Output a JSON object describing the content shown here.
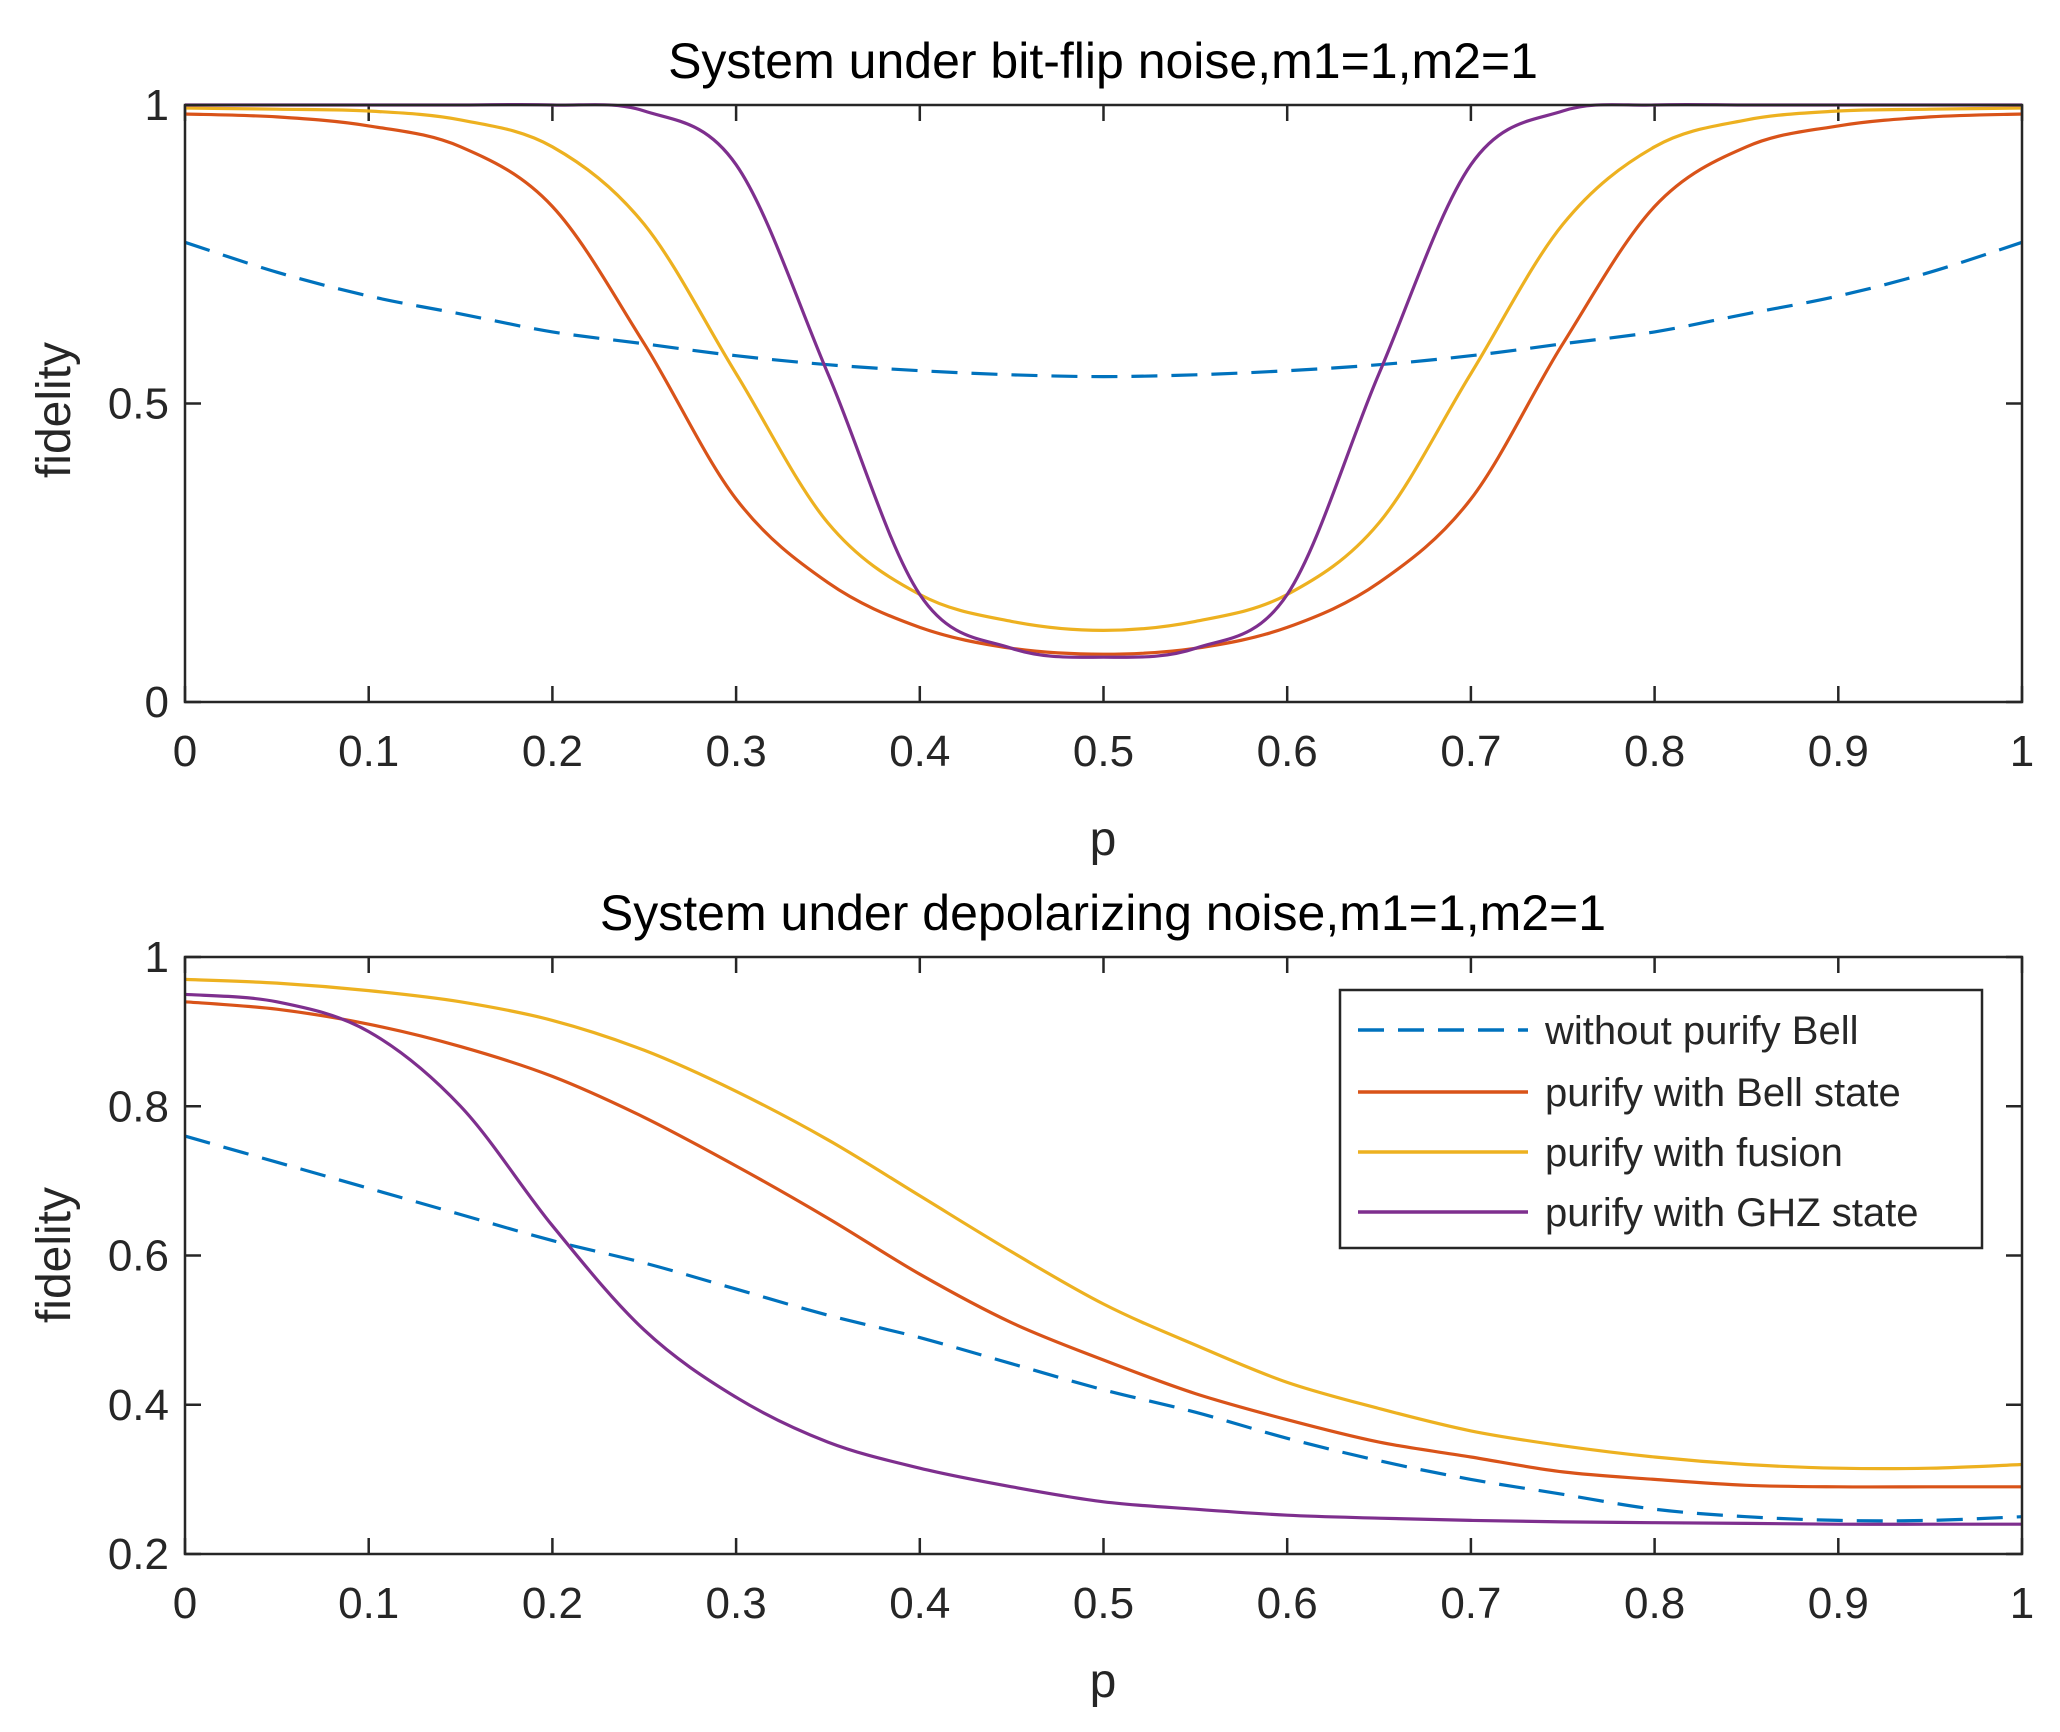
{
  "chart_data": [
    {
      "type": "line",
      "title": "System under bit-flip noise,m1=1,m2=1",
      "xlabel": "p",
      "ylabel": "fidelity",
      "xlim": [
        0,
        1
      ],
      "ylim": [
        0,
        1
      ],
      "xticks": [
        0,
        0.1,
        0.2,
        0.3,
        0.4,
        0.5,
        0.6,
        0.7,
        0.8,
        0.9,
        1
      ],
      "xtick_labels": [
        "0",
        "0.1",
        "0.2",
        "0.3",
        "0.4",
        "0.5",
        "0.6",
        "0.7",
        "0.8",
        "0.9",
        "1"
      ],
      "yticks": [
        0,
        0.5,
        1
      ],
      "ytick_labels": [
        "0",
        "0.5",
        "1"
      ],
      "grid": false,
      "x": [
        0,
        0.05,
        0.1,
        0.15,
        0.2,
        0.25,
        0.3,
        0.35,
        0.4,
        0.45,
        0.5,
        0.55,
        0.6,
        0.65,
        0.7,
        0.75,
        0.8,
        0.85,
        0.9,
        0.95,
        1
      ],
      "series": [
        {
          "name": "without purify Bell",
          "color": "#0072BD",
          "dash": true,
          "values": [
            0.77,
            0.72,
            0.68,
            0.65,
            0.62,
            0.6,
            0.58,
            0.565,
            0.555,
            0.548,
            0.545,
            0.548,
            0.555,
            0.565,
            0.58,
            0.6,
            0.62,
            0.65,
            0.68,
            0.72,
            0.77
          ]
        },
        {
          "name": "purify with Bell state",
          "color": "#D95319",
          "dash": false,
          "values": [
            0.985,
            0.98,
            0.965,
            0.93,
            0.83,
            0.6,
            0.34,
            0.2,
            0.125,
            0.09,
            0.08,
            0.09,
            0.125,
            0.2,
            0.34,
            0.6,
            0.83,
            0.93,
            0.965,
            0.98,
            0.985
          ]
        },
        {
          "name": "purify with fusion",
          "color": "#EDB120",
          "dash": false,
          "values": [
            0.995,
            0.993,
            0.99,
            0.975,
            0.93,
            0.8,
            0.55,
            0.3,
            0.18,
            0.135,
            0.12,
            0.135,
            0.18,
            0.3,
            0.55,
            0.8,
            0.93,
            0.975,
            0.99,
            0.993,
            0.995
          ]
        },
        {
          "name": "purify with GHZ state",
          "color": "#7E2F8E",
          "dash": false,
          "values": [
            1.0,
            1.0,
            1.0,
            1.0,
            1.0,
            0.99,
            0.9,
            0.55,
            0.18,
            0.09,
            0.075,
            0.09,
            0.18,
            0.55,
            0.9,
            0.99,
            1.0,
            1.0,
            1.0,
            1.0,
            1.0
          ]
        }
      ]
    },
    {
      "type": "line",
      "title": "System under depolarizing noise,m1=1,m2=1",
      "xlabel": "p",
      "ylabel": "fidelity",
      "xlim": [
        0,
        1
      ],
      "ylim": [
        0.2,
        1
      ],
      "xticks": [
        0,
        0.1,
        0.2,
        0.3,
        0.4,
        0.5,
        0.6,
        0.7,
        0.8,
        0.9,
        1
      ],
      "xtick_labels": [
        "0",
        "0.1",
        "0.2",
        "0.3",
        "0.4",
        "0.5",
        "0.6",
        "0.7",
        "0.8",
        "0.9",
        "1"
      ],
      "yticks": [
        0.2,
        0.4,
        0.6,
        0.8,
        1
      ],
      "ytick_labels": [
        "0.2",
        "0.4",
        "0.6",
        "0.8",
        "1"
      ],
      "grid": false,
      "legend_position": "top-right",
      "x": [
        0,
        0.05,
        0.1,
        0.15,
        0.2,
        0.25,
        0.3,
        0.35,
        0.4,
        0.45,
        0.5,
        0.55,
        0.6,
        0.65,
        0.7,
        0.75,
        0.8,
        0.85,
        0.9,
        0.95,
        1
      ],
      "series": [
        {
          "name": "without purify Bell",
          "color": "#0072BD",
          "dash": true,
          "values": [
            0.76,
            0.725,
            0.69,
            0.655,
            0.62,
            0.59,
            0.555,
            0.52,
            0.49,
            0.455,
            0.42,
            0.39,
            0.355,
            0.325,
            0.3,
            0.28,
            0.26,
            0.25,
            0.245,
            0.245,
            0.25
          ]
        },
        {
          "name": "purify with Bell state",
          "color": "#D95319",
          "dash": false,
          "values": [
            0.94,
            0.93,
            0.91,
            0.88,
            0.84,
            0.785,
            0.72,
            0.65,
            0.575,
            0.51,
            0.46,
            0.415,
            0.38,
            0.35,
            0.33,
            0.31,
            0.3,
            0.292,
            0.29,
            0.29,
            0.29
          ]
        },
        {
          "name": "purify with fusion",
          "color": "#EDB120",
          "dash": false,
          "values": [
            0.97,
            0.965,
            0.955,
            0.94,
            0.915,
            0.875,
            0.82,
            0.755,
            0.68,
            0.605,
            0.535,
            0.48,
            0.43,
            0.395,
            0.365,
            0.345,
            0.33,
            0.32,
            0.315,
            0.315,
            0.32
          ]
        },
        {
          "name": "purify with GHZ state",
          "color": "#7E2F8E",
          "dash": false,
          "values": [
            0.95,
            0.94,
            0.9,
            0.8,
            0.64,
            0.5,
            0.41,
            0.35,
            0.315,
            0.29,
            0.27,
            0.26,
            0.252,
            0.248,
            0.245,
            0.243,
            0.242,
            0.241,
            0.24,
            0.24,
            0.24
          ]
        }
      ]
    }
  ]
}
